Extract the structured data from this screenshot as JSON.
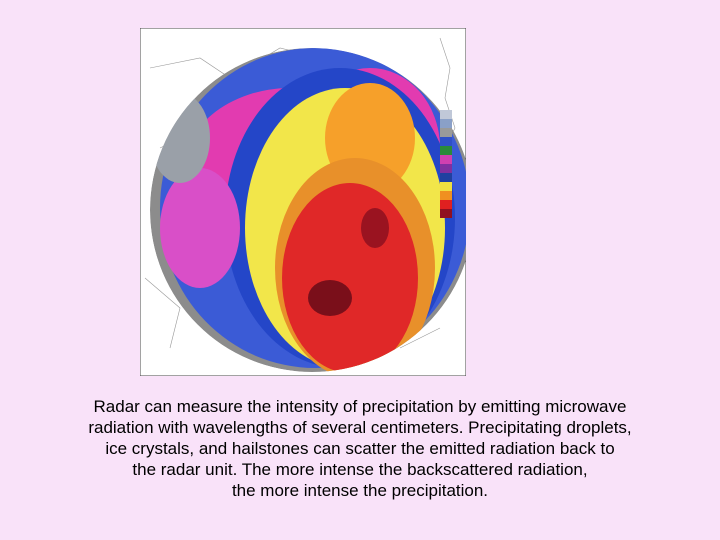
{
  "caption": {
    "lines": [
      "Radar can measure the intensity of precipitation by emitting microwave",
      "radiation with wavelengths of several centimeters. Precipitating droplets,",
      "ice crystals, and hailstones can scatter the emitted radiation back to",
      "the radar unit. The more intense the backscattered radiation,",
      "the more intense the precipitation."
    ]
  }
}
